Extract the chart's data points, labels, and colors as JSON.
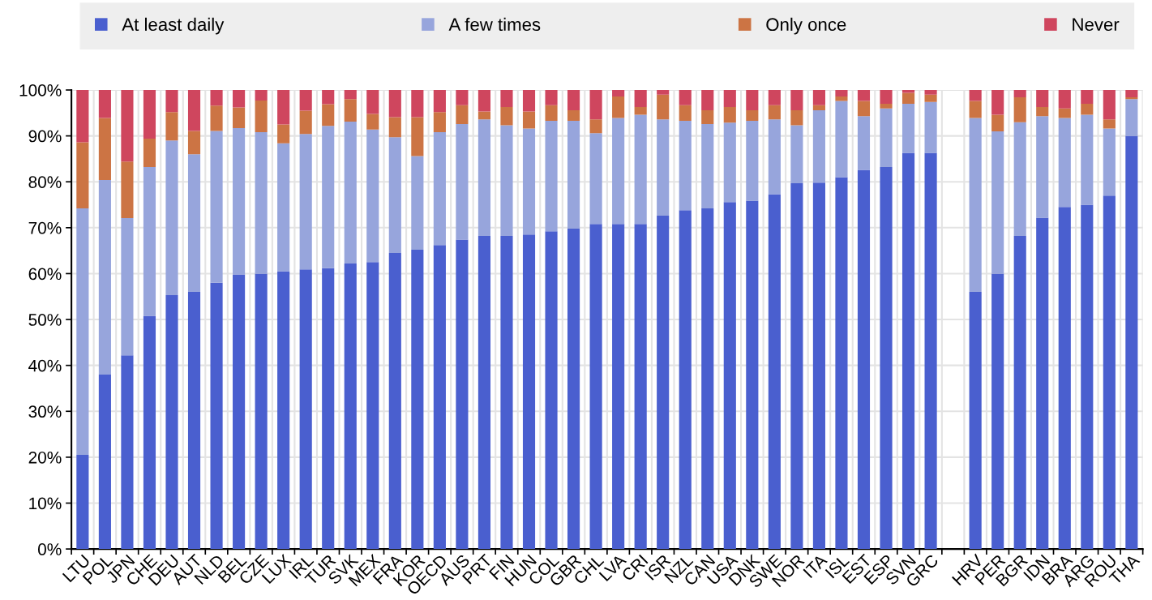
{
  "chart_data": {
    "type": "bar",
    "stacked": true,
    "legend": "top",
    "grid": true,
    "categories": [
      "LTU",
      "POL",
      "JPN",
      "CHE",
      "DEU",
      "AUT",
      "NLD",
      "BEL",
      "CZE",
      "LUX",
      "IRL",
      "TUR",
      "SVK",
      "MEX",
      "FRA",
      "KOR",
      "OECD",
      "AUS",
      "PRT",
      "FIN",
      "HUN",
      "COL",
      "GBR",
      "CHL",
      "LVA",
      "CRI",
      "ISR",
      "NZL",
      "CAN",
      "USA",
      "DNK",
      "SWE",
      "NOR",
      "ITA",
      "ISL",
      "EST",
      "ESP",
      "SVN",
      "GRC",
      null,
      "HRV",
      "PER",
      "BGR",
      "IDN",
      "BRA",
      "ARG",
      "ROU",
      "THA"
    ],
    "ylim": [
      0,
      100
    ],
    "yticks": [
      {
        "value": 0,
        "label": "0%"
      },
      {
        "value": 10,
        "label": "10%"
      },
      {
        "value": 20,
        "label": "20%"
      },
      {
        "value": 30,
        "label": "30%"
      },
      {
        "value": 40,
        "label": "40%"
      },
      {
        "value": 50,
        "label": "50%"
      },
      {
        "value": 60,
        "label": "60%"
      },
      {
        "value": 70,
        "label": "70%"
      },
      {
        "value": 80,
        "label": "80%"
      },
      {
        "value": 90,
        "label": "90%"
      },
      {
        "value": 100,
        "label": "100%"
      }
    ],
    "series": [
      {
        "name": "At least daily",
        "color": "#4a5fcf",
        "values": [
          20.5,
          38,
          42.2,
          50.8,
          55.3,
          56,
          58,
          59.8,
          60,
          60.5,
          60.9,
          61.2,
          62.2,
          62.5,
          64.5,
          65.2,
          66.2,
          67.4,
          68.2,
          68.2,
          68.5,
          69.2,
          69.8,
          70.8,
          70.8,
          70.8,
          72.6,
          73.8,
          74.2,
          75.6,
          75.9,
          77.3,
          79.7,
          79.8,
          81,
          82.6,
          83.2,
          86.3,
          86.3,
          null,
          56,
          60,
          68.2,
          72.2,
          74.5,
          75,
          77,
          90
        ]
      },
      {
        "name": "A few times",
        "color": "#97a5dc",
        "values": [
          53.7,
          42.4,
          29.9,
          32.4,
          33.7,
          30,
          33.1,
          31.9,
          30.8,
          27.9,
          29.5,
          31,
          30.9,
          28.9,
          25.2,
          20.4,
          24.6,
          25.2,
          25.4,
          24.1,
          23.1,
          24.1,
          23.5,
          19.8,
          23.1,
          23.8,
          21,
          19.5,
          18.4,
          17.3,
          17.4,
          16.3,
          12.6,
          15.8,
          16.6,
          11.7,
          12.8,
          10.7,
          11.1,
          null,
          37.9,
          31,
          24.8,
          22.1,
          19.4,
          19.6,
          14.6,
          8
        ]
      },
      {
        "name": "Only once",
        "color": "#cc7444",
        "values": [
          14.4,
          13.5,
          12.3,
          6.2,
          6.2,
          5.1,
          5.5,
          4.5,
          6.9,
          4.1,
          5.1,
          4.7,
          4.9,
          3.4,
          4.4,
          8.5,
          4.4,
          4.1,
          1.7,
          4,
          3.7,
          3.4,
          2.3,
          3,
          4.7,
          1.7,
          5.4,
          3.4,
          3,
          3.4,
          2.3,
          3.1,
          3.3,
          1.1,
          1,
          3.3,
          1,
          2.4,
          1.6,
          null,
          3.7,
          3.6,
          5.4,
          2,
          2.1,
          2.4,
          2,
          0.4
        ]
      },
      {
        "name": "Never",
        "color": "#cf465e",
        "values": [
          11.4,
          6.1,
          15.6,
          10.6,
          4.8,
          8.9,
          3.4,
          3.8,
          2.3,
          7.5,
          4.5,
          3.1,
          2,
          5.2,
          5.9,
          5.9,
          4.8,
          3.3,
          4.7,
          3.7,
          4.7,
          3.3,
          4.4,
          6.4,
          1.4,
          3.7,
          1,
          3.3,
          4.4,
          3.7,
          4.4,
          3.3,
          4.4,
          3.3,
          1.4,
          2.4,
          3,
          0.6,
          1,
          null,
          2.4,
          5.4,
          1.6,
          3.7,
          4,
          3,
          6.4,
          1.6
        ]
      }
    ]
  }
}
